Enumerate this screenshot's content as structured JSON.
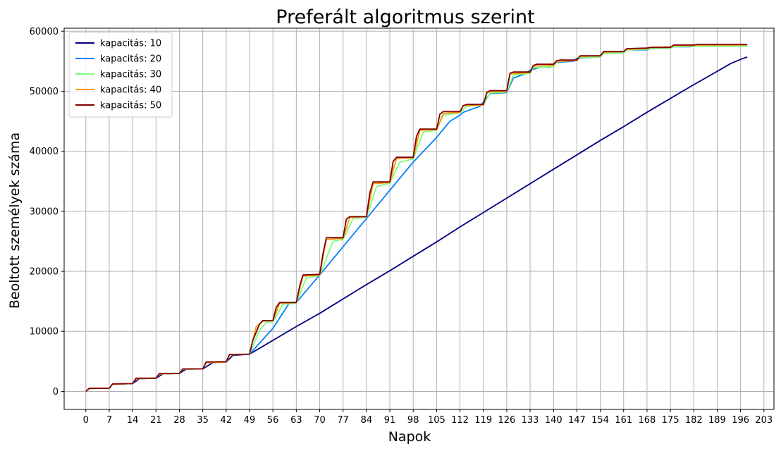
{
  "chart_data": {
    "type": "line",
    "title": "Preferált algoritmus szerint",
    "xlabel": "Napok",
    "ylabel": "Beoltott személyek száma",
    "xlim": [
      -6.5,
      206
    ],
    "ylim": [
      -3000,
      60500
    ],
    "xticks": [
      0,
      7,
      14,
      21,
      28,
      35,
      42,
      49,
      56,
      63,
      70,
      77,
      84,
      91,
      98,
      105,
      112,
      119,
      126,
      133,
      140,
      147,
      154,
      161,
      168,
      175,
      182,
      189,
      196,
      203
    ],
    "yticks": [
      0,
      10000,
      20000,
      30000,
      40000,
      50000,
      60000
    ],
    "grid": true,
    "legend": "upper left",
    "colors": {
      "kapacitas_10": "#00007f",
      "kapacitas_20": "#0080ff",
      "kapacitas_30": "#7dff7a",
      "kapacitas_40": "#ff9400",
      "kapacitas_50": "#7f0000"
    },
    "series": [
      {
        "name": "kapacitás: 10",
        "color": "#00007f",
        "points": [
          [
            0,
            0
          ],
          [
            1,
            500
          ],
          [
            7,
            550
          ],
          [
            8,
            1200
          ],
          [
            14,
            1300
          ],
          [
            16,
            2100
          ],
          [
            21,
            2200
          ],
          [
            23,
            2900
          ],
          [
            28,
            3000
          ],
          [
            30,
            3700
          ],
          [
            35,
            3750
          ],
          [
            38,
            4800
          ],
          [
            42,
            4900
          ],
          [
            44,
            6000
          ],
          [
            49,
            6200
          ],
          [
            56,
            8500
          ],
          [
            63,
            10800
          ],
          [
            70,
            13000
          ],
          [
            77,
            15400
          ],
          [
            84,
            17800
          ],
          [
            91,
            20100
          ],
          [
            98,
            22500
          ],
          [
            105,
            24900
          ],
          [
            112,
            27400
          ],
          [
            119,
            29800
          ],
          [
            126,
            32200
          ],
          [
            133,
            34600
          ],
          [
            140,
            37000
          ],
          [
            147,
            39400
          ],
          [
            154,
            41800
          ],
          [
            161,
            44100
          ],
          [
            168,
            46500
          ],
          [
            175,
            48800
          ],
          [
            182,
            51100
          ],
          [
            189,
            53300
          ],
          [
            193,
            54600
          ],
          [
            196,
            55300
          ],
          [
            198,
            55700
          ]
        ]
      },
      {
        "name": "kapacitás: 20",
        "color": "#0080ff",
        "points": [
          [
            0,
            0
          ],
          [
            1,
            500
          ],
          [
            7,
            550
          ],
          [
            8,
            1200
          ],
          [
            14,
            1300
          ],
          [
            15,
            2100
          ],
          [
            21,
            2200
          ],
          [
            22,
            2900
          ],
          [
            28,
            3000
          ],
          [
            29,
            3700
          ],
          [
            35,
            3750
          ],
          [
            36,
            4800
          ],
          [
            42,
            4900
          ],
          [
            43,
            6100
          ],
          [
            49,
            6200
          ],
          [
            56,
            10500
          ],
          [
            61,
            14800
          ],
          [
            63,
            14800
          ],
          [
            70,
            19400
          ],
          [
            84,
            28800
          ],
          [
            98,
            38200
          ],
          [
            105,
            42300
          ],
          [
            109,
            45000
          ],
          [
            112,
            46000
          ],
          [
            113,
            46500
          ],
          [
            118,
            47500
          ],
          [
            121,
            49600
          ],
          [
            126,
            49800
          ],
          [
            128,
            52200
          ],
          [
            131,
            52800
          ],
          [
            133,
            53500
          ],
          [
            136,
            54000
          ],
          [
            139,
            54000
          ],
          [
            141,
            54800
          ],
          [
            146,
            55000
          ],
          [
            147,
            55500
          ],
          [
            154,
            55700
          ],
          [
            155,
            56300
          ],
          [
            161,
            56400
          ],
          [
            162,
            56900
          ],
          [
            168,
            56900
          ],
          [
            169,
            57100
          ],
          [
            175,
            57200
          ],
          [
            176,
            57400
          ],
          [
            181,
            57400
          ],
          [
            182,
            57500
          ],
          [
            198,
            57500
          ]
        ]
      },
      {
        "name": "kapacitás: 30",
        "color": "#7dff7a",
        "points": [
          [
            0,
            0
          ],
          [
            1,
            500
          ],
          [
            7,
            550
          ],
          [
            8,
            1200
          ],
          [
            14,
            1300
          ],
          [
            15,
            2100
          ],
          [
            21,
            2200
          ],
          [
            22,
            2900
          ],
          [
            28,
            3000
          ],
          [
            29,
            3700
          ],
          [
            35,
            3750
          ],
          [
            36,
            4800
          ],
          [
            42,
            4900
          ],
          [
            43,
            6100
          ],
          [
            49,
            6200
          ],
          [
            52,
            10200
          ],
          [
            54,
            11500
          ],
          [
            56,
            11600
          ],
          [
            59,
            14500
          ],
          [
            63,
            14700
          ],
          [
            66,
            18900
          ],
          [
            70,
            19300
          ],
          [
            74,
            25000
          ],
          [
            77,
            25300
          ],
          [
            80,
            28800
          ],
          [
            84,
            29000
          ],
          [
            87,
            34100
          ],
          [
            91,
            34700
          ],
          [
            94,
            38200
          ],
          [
            98,
            38700
          ],
          [
            101,
            43200
          ],
          [
            105,
            43500
          ],
          [
            107,
            46000
          ],
          [
            112,
            46400
          ],
          [
            114,
            47500
          ],
          [
            119,
            47700
          ],
          [
            121,
            49700
          ],
          [
            126,
            49900
          ],
          [
            128,
            52700
          ],
          [
            133,
            53000
          ],
          [
            134,
            53900
          ],
          [
            140,
            54100
          ],
          [
            141,
            54900
          ],
          [
            147,
            55200
          ],
          [
            148,
            55600
          ],
          [
            154,
            55700
          ],
          [
            155,
            56300
          ],
          [
            161,
            56400
          ],
          [
            162,
            56900
          ],
          [
            168,
            57000
          ],
          [
            169,
            57100
          ],
          [
            175,
            57200
          ],
          [
            176,
            57400
          ],
          [
            182,
            57500
          ],
          [
            198,
            57500
          ]
        ]
      },
      {
        "name": "kapacitás: 40",
        "color": "#ff9400",
        "points": [
          [
            0,
            0
          ],
          [
            1,
            500
          ],
          [
            7,
            550
          ],
          [
            8,
            1200
          ],
          [
            14,
            1300
          ],
          [
            15,
            2100
          ],
          [
            21,
            2200
          ],
          [
            22,
            2900
          ],
          [
            28,
            3000
          ],
          [
            29,
            3700
          ],
          [
            35,
            3750
          ],
          [
            36,
            4800
          ],
          [
            42,
            4900
          ],
          [
            43,
            6100
          ],
          [
            49,
            6200
          ],
          [
            51,
            10800
          ],
          [
            53,
            11700
          ],
          [
            56,
            11800
          ],
          [
            58,
            14700
          ],
          [
            63,
            14800
          ],
          [
            65,
            19200
          ],
          [
            70,
            19400
          ],
          [
            72,
            25300
          ],
          [
            77,
            25500
          ],
          [
            79,
            29000
          ],
          [
            84,
            29100
          ],
          [
            86,
            34600
          ],
          [
            91,
            34800
          ],
          [
            93,
            38800
          ],
          [
            98,
            38900
          ],
          [
            100,
            43500
          ],
          [
            105,
            43600
          ],
          [
            107,
            46300
          ],
          [
            112,
            46500
          ],
          [
            113,
            47600
          ],
          [
            119,
            47700
          ],
          [
            120,
            49900
          ],
          [
            126,
            50000
          ],
          [
            127,
            52900
          ],
          [
            133,
            53100
          ],
          [
            134,
            54200
          ],
          [
            140,
            54300
          ],
          [
            141,
            55000
          ],
          [
            147,
            55100
          ],
          [
            148,
            55800
          ],
          [
            154,
            55900
          ],
          [
            155,
            56500
          ],
          [
            161,
            56600
          ],
          [
            162,
            57000
          ],
          [
            168,
            57100
          ],
          [
            169,
            57300
          ],
          [
            175,
            57400
          ],
          [
            176,
            57600
          ],
          [
            182,
            57600
          ],
          [
            183,
            57700
          ],
          [
            198,
            57700
          ]
        ]
      },
      {
        "name": "kapacitás: 50",
        "color": "#7f0000",
        "points": [
          [
            0,
            0
          ],
          [
            1,
            500
          ],
          [
            7,
            550
          ],
          [
            8,
            1250
          ],
          [
            14,
            1300
          ],
          [
            15,
            2200
          ],
          [
            21,
            2200
          ],
          [
            22,
            3000
          ],
          [
            28,
            3000
          ],
          [
            29,
            3750
          ],
          [
            35,
            3750
          ],
          [
            36,
            4900
          ],
          [
            42,
            4950
          ],
          [
            43,
            6150
          ],
          [
            49,
            6200
          ],
          [
            50,
            8500
          ],
          [
            52,
            11200
          ],
          [
            53,
            11800
          ],
          [
            56,
            11800
          ],
          [
            57,
            14000
          ],
          [
            58,
            14800
          ],
          [
            63,
            14800
          ],
          [
            64,
            17500
          ],
          [
            65,
            19400
          ],
          [
            70,
            19500
          ],
          [
            71,
            23000
          ],
          [
            72,
            25600
          ],
          [
            77,
            25600
          ],
          [
            78,
            28700
          ],
          [
            79,
            29100
          ],
          [
            84,
            29100
          ],
          [
            85,
            33000
          ],
          [
            86,
            34900
          ],
          [
            91,
            34900
          ],
          [
            92,
            38300
          ],
          [
            93,
            39000
          ],
          [
            98,
            39000
          ],
          [
            99,
            42500
          ],
          [
            100,
            43700
          ],
          [
            105,
            43700
          ],
          [
            106,
            46200
          ],
          [
            107,
            46600
          ],
          [
            112,
            46600
          ],
          [
            113,
            47600
          ],
          [
            114,
            47800
          ],
          [
            119,
            47800
          ],
          [
            120,
            49700
          ],
          [
            121,
            50100
          ],
          [
            126,
            50100
          ],
          [
            127,
            53000
          ],
          [
            128,
            53200
          ],
          [
            133,
            53200
          ],
          [
            134,
            54300
          ],
          [
            135,
            54500
          ],
          [
            140,
            54500
          ],
          [
            141,
            55100
          ],
          [
            142,
            55200
          ],
          [
            147,
            55200
          ],
          [
            148,
            55900
          ],
          [
            154,
            55900
          ],
          [
            155,
            56600
          ],
          [
            161,
            56600
          ],
          [
            162,
            57100
          ],
          [
            168,
            57200
          ],
          [
            169,
            57300
          ],
          [
            175,
            57300
          ],
          [
            176,
            57700
          ],
          [
            182,
            57700
          ],
          [
            183,
            57800
          ],
          [
            198,
            57800
          ]
        ]
      }
    ]
  }
}
